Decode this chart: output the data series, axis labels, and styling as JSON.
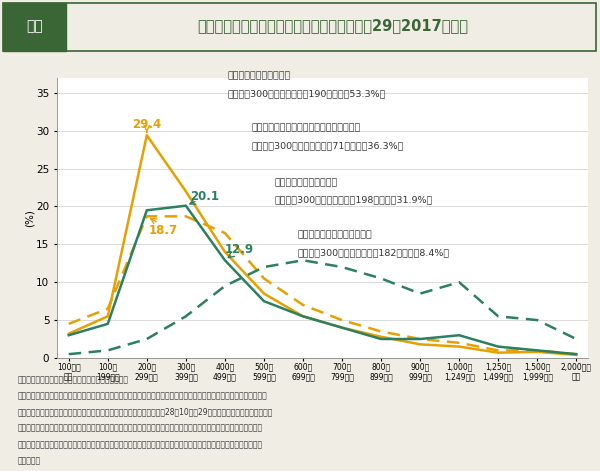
{
  "title_box_label": "図４",
  "title_text": "世帯主が就業している世帯の所得分布（平成29（2017）年）",
  "ylabel": "(%)",
  "xlabels_line1": [
    "100万円",
    "100～",
    "200～",
    "300～",
    "400～",
    "500～",
    "600～",
    "700～",
    "800～",
    "900～",
    "1,000～",
    "1,250～",
    "1,500～",
    "2,000万円"
  ],
  "xlabels_line2": [
    "未満",
    "199万円",
    "299万円",
    "399万円",
    "499万円",
    "599万円",
    "699万円",
    "799万円",
    "899万円",
    "999万円",
    "1,249万円",
    "1,499万円",
    "1,999万円",
    "以上"
  ],
  "single_female_values": [
    3.2,
    5.5,
    29.4,
    22.0,
    14.0,
    8.5,
    5.5,
    4.0,
    2.8,
    1.8,
    1.5,
    0.7,
    0.8,
    0.4
  ],
  "non_single_female_values": [
    4.5,
    6.5,
    18.7,
    18.7,
    16.5,
    10.5,
    7.0,
    5.0,
    3.5,
    2.5,
    2.0,
    1.0,
    1.0,
    0.5
  ],
  "single_male_values": [
    3.0,
    4.5,
    19.5,
    20.1,
    12.9,
    7.5,
    5.5,
    4.0,
    2.5,
    2.5,
    3.0,
    1.5,
    1.0,
    0.5
  ],
  "non_single_male_values": [
    0.5,
    1.0,
    2.5,
    5.5,
    9.5,
    12.0,
    12.9,
    12.0,
    10.5,
    8.5,
    10.0,
    5.5,
    5.0,
    2.5
  ],
  "orange_color": "#E8A000",
  "green_color": "#2A8060",
  "bg_color": "#F0EDE5",
  "plot_bg_color": "#FFFFFF",
  "header_green": "#3A6535",
  "grid_color": "#CCCCCC",
  "ylim": [
    0,
    37
  ],
  "yticks": [
    0,
    5,
    10,
    15,
    20,
    25,
    30,
    35
  ],
  "box1_line1": "単独世帯（世帯主女性）",
  "box1_line2": "世帯所得300万円未満世帯：190万世帯（53.3%）",
  "box2_line1": "単独世帯以外（世帯主女性）：母子世帯等",
  "box2_line2": "世帯所得300万円未満世帯：71万世帯（36.3%）",
  "box3_line1": "単独世帯（世帯主男性）",
  "box3_line2": "世帯所得300万円未満世帯：198万世帯（31.9%）",
  "box4_line1": "単独世帯以外（世帯主男性）",
  "box4_line2": "世帯所得300万円未満世帯：182万世帯（8.4%）",
  "footnote1": "（備考）１．総務省「就業構造基本調査」より作成。",
  "footnote2": "２．「世帯主が就業している世帯」とは、世帯主が「仕事が主」である世帯のこと。「世帯所得」とは、世帯主、世帯主",
  "footnote3": "　　の配偶者及びその他の親族世帯員が通常得ている過去１年間（平成28年10月～29年９月）の収入（税込み額）の",
  "footnote4": "　　合計をいう。なお、年金、恩給など定期的に得られる収入は含めるが、土地、家屋や証券などの財産の売却によっ",
  "footnote5": "　　て得た収入、預貯金の引き出しなど所有財産を現金化したものや、相続、贈与、退職金などの臨時的な収入は含ま",
  "footnote6": "　　ない。"
}
